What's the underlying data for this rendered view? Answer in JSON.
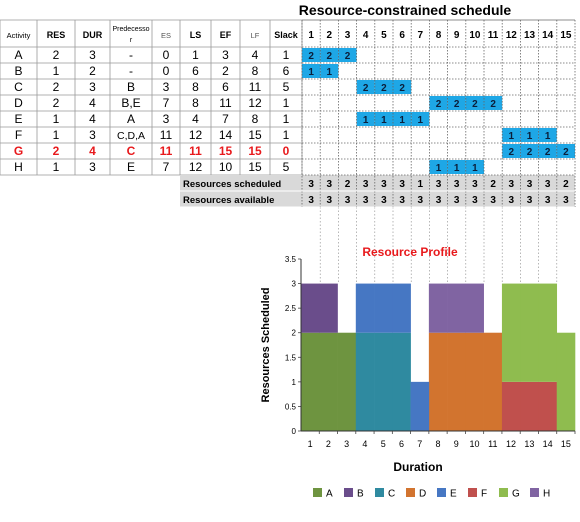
{
  "header": {
    "title": "Resource-constrained schedule"
  },
  "table": {
    "columns": [
      "Activity",
      "RES",
      "DUR",
      "Predecesso\nr",
      "ES",
      "LS",
      "EF",
      "LF",
      "Slack"
    ],
    "rows": [
      {
        "act": "A",
        "res": "2",
        "dur": "3",
        "pred": "-",
        "es": "0",
        "ls": "1",
        "ef": "3",
        "lf": "4",
        "slack": "1"
      },
      {
        "act": "B",
        "res": "1",
        "dur": "2",
        "pred": "-",
        "es": "0",
        "ls": "6",
        "ef": "2",
        "lf": "8",
        "slack": "6"
      },
      {
        "act": "C",
        "res": "2",
        "dur": "3",
        "pred": "B",
        "es": "3",
        "ls": "8",
        "ef": "6",
        "lf": "11",
        "slack": "5"
      },
      {
        "act": "D",
        "res": "2",
        "dur": "4",
        "pred": "B,E",
        "es": "7",
        "ls": "8",
        "ef": "11",
        "lf": "12",
        "slack": "1"
      },
      {
        "act": "E",
        "res": "1",
        "dur": "4",
        "pred": "A",
        "es": "3",
        "ls": "4",
        "ef": "7",
        "lf": "8",
        "slack": "1"
      },
      {
        "act": "F",
        "res": "1",
        "dur": "3",
        "pred": "C,D,A",
        "es": "11",
        "ls": "12",
        "ef": "14",
        "lf": "15",
        "slack": "1"
      },
      {
        "act": "G",
        "res": "2",
        "dur": "4",
        "pred": "C",
        "es": "11",
        "ls": "11",
        "ef": "15",
        "lf": "15",
        "slack": "0",
        "critical": true
      },
      {
        "act": "H",
        "res": "1",
        "dur": "3",
        "pred": "E",
        "es": "7",
        "ls": "12",
        "ef": "10",
        "lf": "15",
        "slack": "5"
      }
    ]
  },
  "schedule": {
    "periods": [
      "1",
      "2",
      "3",
      "4",
      "5",
      "6",
      "7",
      "8",
      "9",
      "10",
      "11",
      "12",
      "13",
      "14",
      "15"
    ],
    "bars": [
      {
        "row": 0,
        "start": 1,
        "vals": [
          "2",
          "2",
          "2"
        ]
      },
      {
        "row": 1,
        "start": 1,
        "vals": [
          "1",
          "1"
        ]
      },
      {
        "row": 2,
        "start": 4,
        "vals": [
          "2",
          "2",
          "2"
        ]
      },
      {
        "row": 3,
        "start": 8,
        "vals": [
          "2",
          "2",
          "2",
          "2"
        ]
      },
      {
        "row": 4,
        "start": 4,
        "vals": [
          "1",
          "1",
          "1",
          "1"
        ]
      },
      {
        "row": 5,
        "start": 12,
        "vals": [
          "1",
          "1",
          "1"
        ]
      },
      {
        "row": 6,
        "start": 12,
        "vals": [
          "2",
          "2",
          "2",
          "2"
        ]
      },
      {
        "row": 7,
        "start": 8,
        "vals": [
          "1",
          "1",
          "1"
        ]
      }
    ],
    "resources_scheduled_label": "Resources scheduled",
    "resources_available_label": "Resources available",
    "resources_scheduled": [
      "3",
      "3",
      "2",
      "3",
      "3",
      "3",
      "1",
      "3",
      "3",
      "3",
      "2",
      "3",
      "3",
      "3",
      "2"
    ],
    "resources_available": [
      "3",
      "3",
      "3",
      "3",
      "3",
      "3",
      "3",
      "3",
      "3",
      "3",
      "3",
      "3",
      "3",
      "3",
      "3"
    ]
  },
  "colors": {
    "bar_blue": "#1ea7e6",
    "summary_gray": "#d9d9d9",
    "critical_red": "#e8191c",
    "A": "#6e9440",
    "B": "#6a4d8b",
    "C": "#2f8aa0",
    "D": "#d2742f",
    "E": "#4677c3",
    "F": "#c0504d",
    "G": "#8fbc4f",
    "H": "#8064a2"
  },
  "chart_data": {
    "type": "bar",
    "title": "Resource Profile",
    "xlabel": "Duration",
    "ylabel": "Resources Scheduled",
    "categories": [
      "1",
      "2",
      "3",
      "4",
      "5",
      "6",
      "7",
      "8",
      "9",
      "10",
      "11",
      "12",
      "13",
      "14",
      "15"
    ],
    "ylim": [
      0,
      3.5
    ],
    "yticks": [
      "0",
      "0.5",
      "1",
      "1.5",
      "2",
      "2.5",
      "3",
      "3.5"
    ],
    "stacked": true,
    "legend_position": "bottom",
    "series": [
      {
        "name": "A",
        "color": "#6e9440",
        "values": [
          2,
          2,
          2,
          0,
          0,
          0,
          0,
          0,
          0,
          0,
          0,
          0,
          0,
          0,
          0
        ]
      },
      {
        "name": "B",
        "color": "#6a4d8b",
        "values": [
          1,
          1,
          0,
          0,
          0,
          0,
          0,
          0,
          0,
          0,
          0,
          0,
          0,
          0,
          0
        ]
      },
      {
        "name": "C",
        "color": "#2f8aa0",
        "values": [
          0,
          0,
          0,
          2,
          2,
          2,
          0,
          0,
          0,
          0,
          0,
          0,
          0,
          0,
          0
        ]
      },
      {
        "name": "D",
        "color": "#d2742f",
        "values": [
          0,
          0,
          0,
          0,
          0,
          0,
          0,
          2,
          2,
          2,
          2,
          0,
          0,
          0,
          0
        ]
      },
      {
        "name": "E",
        "color": "#4677c3",
        "values": [
          0,
          0,
          0,
          1,
          1,
          1,
          1,
          0,
          0,
          0,
          0,
          0,
          0,
          0,
          0
        ]
      },
      {
        "name": "F",
        "color": "#c0504d",
        "values": [
          0,
          0,
          0,
          0,
          0,
          0,
          0,
          0,
          0,
          0,
          0,
          1,
          1,
          1,
          0
        ]
      },
      {
        "name": "G",
        "color": "#8fbc4f",
        "values": [
          0,
          0,
          0,
          0,
          0,
          0,
          0,
          0,
          0,
          0,
          0,
          2,
          2,
          2,
          2
        ]
      },
      {
        "name": "H",
        "color": "#8064a2",
        "values": [
          0,
          0,
          0,
          0,
          0,
          0,
          0,
          1,
          1,
          1,
          0,
          0,
          0,
          0,
          0
        ]
      }
    ]
  }
}
